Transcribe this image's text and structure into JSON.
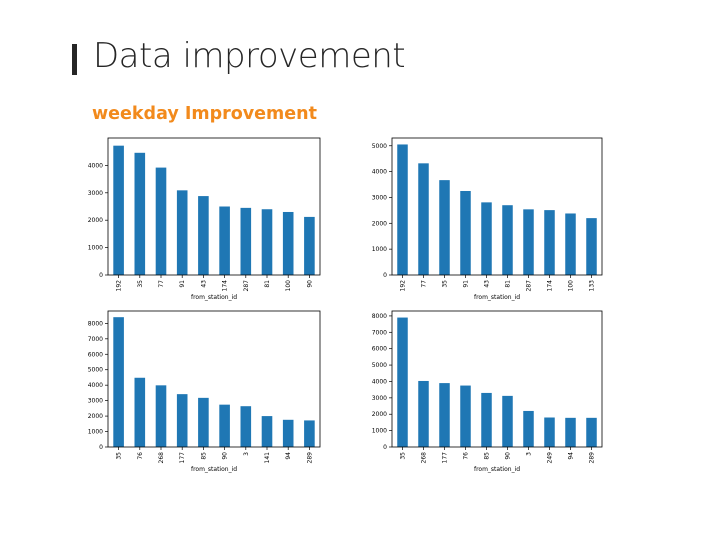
{
  "slide": {
    "title": "Data improvement",
    "subtitle": "weekday Improvement"
  },
  "colors": {
    "accent": "#f28a1c",
    "bar": "#1f77b4",
    "title": "#262626"
  },
  "chart_data": [
    {
      "type": "bar",
      "categories": [
        "192",
        "35",
        "77",
        "91",
        "43",
        "174",
        "287",
        "81",
        "100",
        "90"
      ],
      "values": [
        4720,
        4460,
        3920,
        3090,
        2880,
        2500,
        2450,
        2400,
        2300,
        2120
      ],
      "xlabel": "from_station_id",
      "ylabel": "",
      "ylim": [
        0,
        5000
      ],
      "yticks": [
        0,
        1000,
        2000,
        3000,
        4000
      ],
      "grid": false
    },
    {
      "type": "bar",
      "categories": [
        "192",
        "77",
        "35",
        "91",
        "43",
        "81",
        "287",
        "174",
        "100",
        "133"
      ],
      "values": [
        5050,
        4320,
        3670,
        3250,
        2810,
        2700,
        2540,
        2510,
        2380,
        2200
      ],
      "xlabel": "from_station_id",
      "ylabel": "",
      "ylim": [
        0,
        5300
      ],
      "yticks": [
        0,
        1000,
        2000,
        3000,
        4000,
        5000
      ],
      "grid": false
    },
    {
      "type": "bar",
      "categories": [
        "35",
        "76",
        "268",
        "177",
        "85",
        "90",
        "3",
        "141",
        "94",
        "289"
      ],
      "values": [
        8400,
        4480,
        3990,
        3420,
        3180,
        2740,
        2640,
        2000,
        1760,
        1720
      ],
      "xlabel": "from_station_id",
      "ylabel": "",
      "ylim": [
        0,
        8800
      ],
      "yticks": [
        0,
        1000,
        2000,
        3000,
        4000,
        5000,
        6000,
        7000,
        8000
      ],
      "grid": false
    },
    {
      "type": "bar",
      "categories": [
        "35",
        "268",
        "177",
        "76",
        "85",
        "90",
        "3",
        "249",
        "94",
        "289"
      ],
      "values": [
        7900,
        4030,
        3900,
        3750,
        3300,
        3120,
        2200,
        1800,
        1780,
        1780
      ],
      "xlabel": "from_station_id",
      "ylabel": "",
      "ylim": [
        0,
        8300
      ],
      "yticks": [
        0,
        1000,
        2000,
        3000,
        4000,
        5000,
        6000,
        7000,
        8000
      ],
      "grid": false
    }
  ]
}
